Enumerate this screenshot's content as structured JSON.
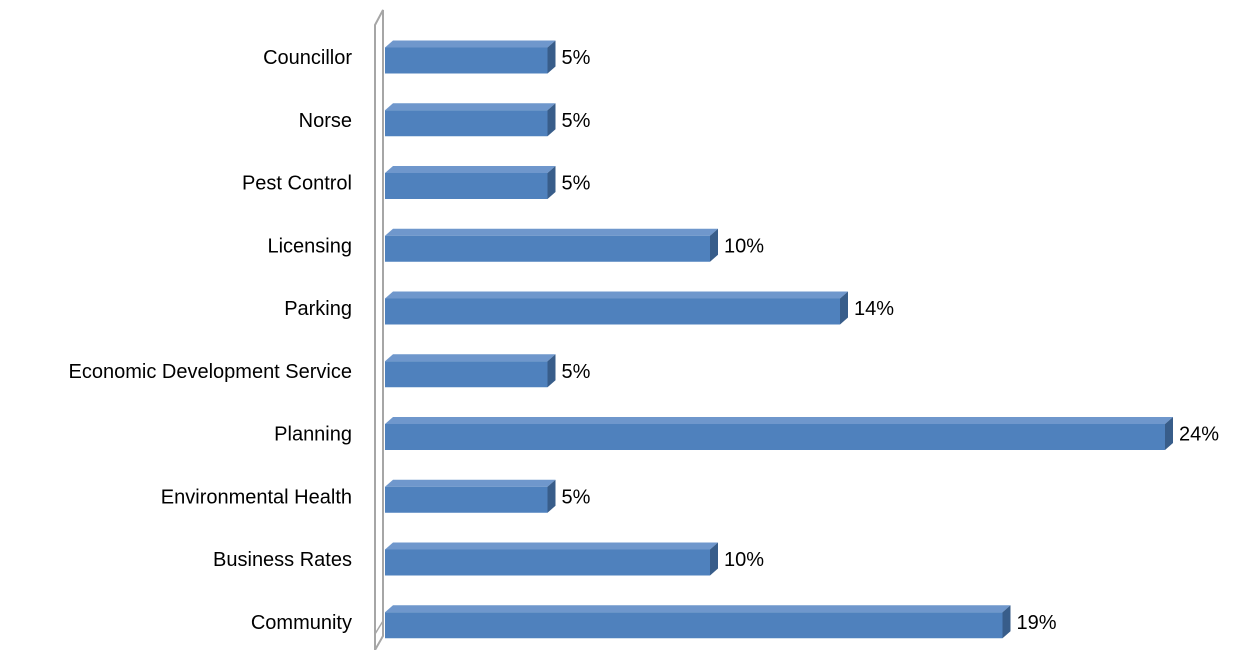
{
  "chart_data": {
    "type": "bar",
    "orientation": "horizontal",
    "title": "",
    "xlabel": "",
    "ylabel": "",
    "categories": [
      "Councillor",
      "Norse",
      "Pest Control",
      "Licensing",
      "Parking",
      "Economic Development Service",
      "Planning",
      "Environmental Health",
      "Business Rates",
      "Community"
    ],
    "values": [
      5,
      5,
      5,
      10,
      14,
      5,
      24,
      5,
      10,
      19
    ],
    "value_labels": [
      "5%",
      "5%",
      "5%",
      "10%",
      "14%",
      "5%",
      "24%",
      "5%",
      "10%",
      "19%"
    ],
    "value_unit": "%",
    "xlim": [
      0,
      25
    ],
    "grid": false,
    "legend": "none",
    "style": "3d",
    "colors": {
      "bar_face": "#4f81bd",
      "bar_top": "#6f97cc",
      "bar_side": "#385d8a",
      "axis": "#a6a6a6",
      "text": "#000000"
    }
  }
}
